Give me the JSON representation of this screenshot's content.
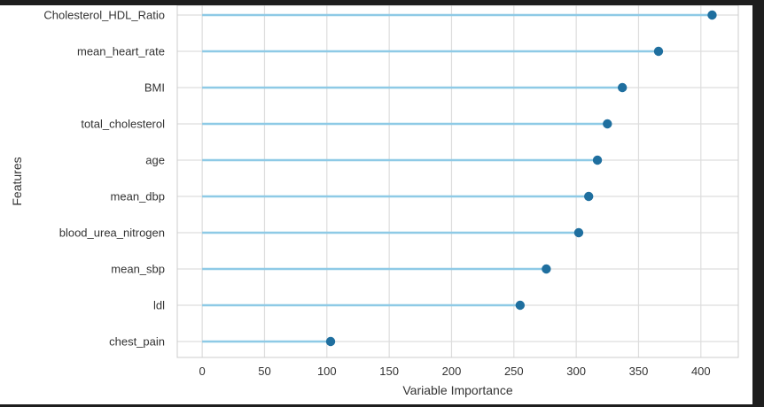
{
  "chart_data": {
    "type": "lollipop",
    "xlabel": "Variable Importance",
    "ylabel": "Features",
    "xlim": [
      -20,
      430
    ],
    "xticks": [
      0,
      50,
      100,
      150,
      200,
      250,
      300,
      350,
      400
    ],
    "grid": true,
    "orientation": "horizontal",
    "categories": [
      "Cholesterol_HDL_Ratio",
      "mean_heart_rate",
      "BMI",
      "total_cholesterol",
      "age",
      "mean_dbp",
      "blood_urea_nitrogen",
      "mean_sbp",
      "ldl",
      "chest_pain"
    ],
    "values": [
      409,
      366,
      337,
      325,
      317,
      310,
      302,
      276,
      255,
      103
    ],
    "colors": {
      "stem": "#8ecae6",
      "marker": "#1f6f9f",
      "grid": "#dddddd",
      "frame": "#cccccc"
    }
  }
}
